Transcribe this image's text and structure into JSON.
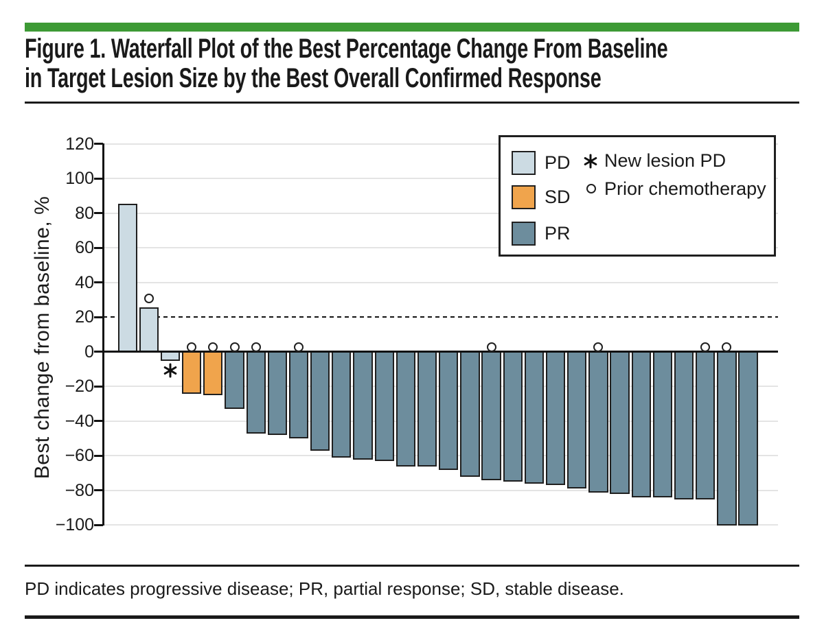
{
  "figure": {
    "accent_bar_color": "#3d9a35",
    "title_line1": "Figure 1. Waterfall Plot of the Best Percentage Change From Baseline",
    "title_line2": "in Target Lesion Size by the Best Overall Confirmed Response",
    "footnote": "PD indicates progressive disease; PR, partial response; SD, stable disease."
  },
  "legend": {
    "items": [
      {
        "label": "PD",
        "color": "#ccdbe3"
      },
      {
        "label": "SD",
        "color": "#f0a44c"
      },
      {
        "label": "PR",
        "color": "#6d8d9d"
      }
    ],
    "markers": [
      {
        "symbol": "asterisk",
        "label": "New lesion PD"
      },
      {
        "symbol": "circle",
        "label": "Prior chemotherapy"
      }
    ]
  },
  "chart_data": {
    "type": "bar",
    "title": "",
    "xlabel": "",
    "ylabel": "Best change from baseline, %",
    "ylim": [
      -100,
      120
    ],
    "yticks": [
      120,
      100,
      80,
      60,
      40,
      20,
      0,
      -20,
      -40,
      -60,
      -80,
      -100
    ],
    "reference_dashed_line_y": 20,
    "grid": true,
    "legend_position": "top-right",
    "series_colors": {
      "PD": "#ccdbe3",
      "SD": "#f0a44c",
      "PR": "#6d8d9d"
    },
    "bars": [
      {
        "value": 85,
        "response": "PD"
      },
      {
        "value": 25,
        "response": "PD",
        "prior_chemotherapy": true
      },
      {
        "value": -5,
        "response": "PD",
        "new_lesion_pd": true
      },
      {
        "value": -24,
        "response": "SD",
        "prior_chemotherapy": true
      },
      {
        "value": -25,
        "response": "SD",
        "prior_chemotherapy": true
      },
      {
        "value": -33,
        "response": "PR",
        "prior_chemotherapy": true
      },
      {
        "value": -47,
        "response": "PR",
        "prior_chemotherapy": true
      },
      {
        "value": -48,
        "response": "PR"
      },
      {
        "value": -50,
        "response": "PR",
        "prior_chemotherapy": true
      },
      {
        "value": -57,
        "response": "PR"
      },
      {
        "value": -61,
        "response": "PR"
      },
      {
        "value": -62,
        "response": "PR"
      },
      {
        "value": -63,
        "response": "PR"
      },
      {
        "value": -66,
        "response": "PR"
      },
      {
        "value": -66,
        "response": "PR"
      },
      {
        "value": -68,
        "response": "PR"
      },
      {
        "value": -72,
        "response": "PR"
      },
      {
        "value": -74,
        "response": "PR",
        "prior_chemotherapy": true
      },
      {
        "value": -75,
        "response": "PR"
      },
      {
        "value": -76,
        "response": "PR"
      },
      {
        "value": -77,
        "response": "PR"
      },
      {
        "value": -79,
        "response": "PR"
      },
      {
        "value": -81,
        "response": "PR",
        "prior_chemotherapy": true
      },
      {
        "value": -82,
        "response": "PR"
      },
      {
        "value": -84,
        "response": "PR"
      },
      {
        "value": -84,
        "response": "PR"
      },
      {
        "value": -85,
        "response": "PR"
      },
      {
        "value": -85,
        "response": "PR",
        "prior_chemotherapy": true
      },
      {
        "value": -100,
        "response": "PR",
        "prior_chemotherapy": true
      },
      {
        "value": -100,
        "response": "PR"
      }
    ]
  }
}
